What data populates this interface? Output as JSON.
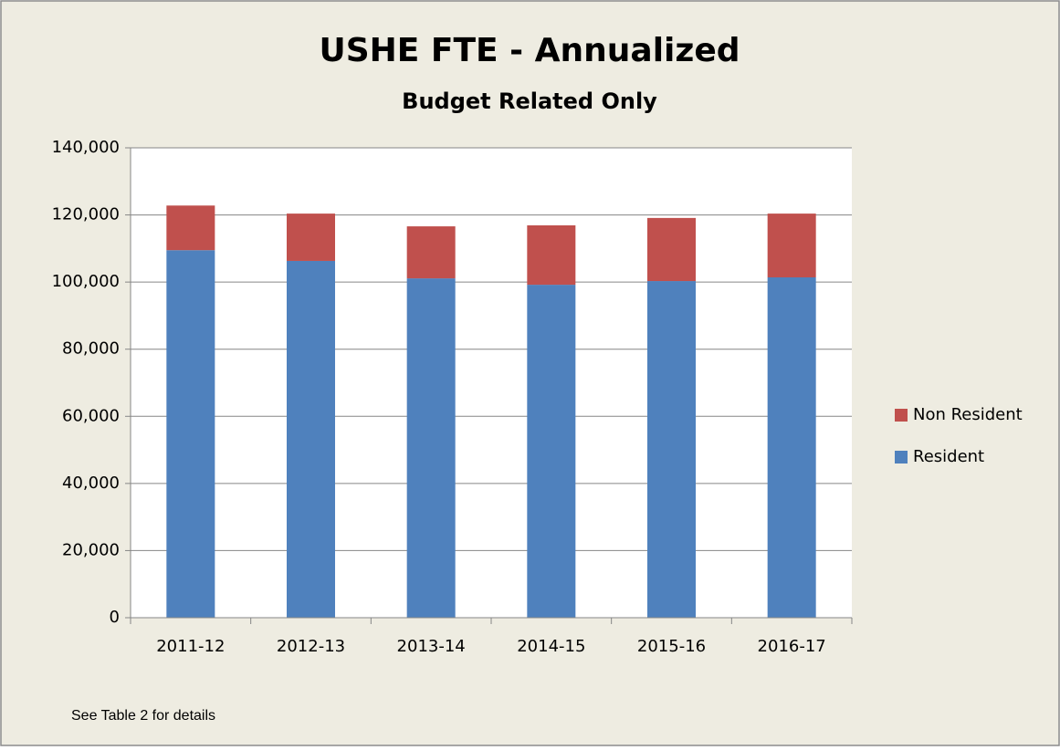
{
  "chart_data": {
    "type": "stacked-bar",
    "title": "USHE FTE - Annualized",
    "subtitle": "Budget Related Only",
    "categories": [
      "2011-12",
      "2012-13",
      "2013-14",
      "2014-15",
      "2015-16",
      "2016-17"
    ],
    "series": [
      {
        "name": "Resident",
        "color": "#4f81bd",
        "values": [
          109500,
          106300,
          101100,
          99200,
          100300,
          101400
        ]
      },
      {
        "name": "Non Resident",
        "color": "#c0504d",
        "values": [
          13300,
          14100,
          15500,
          17700,
          18800,
          19000
        ]
      }
    ],
    "ylim": [
      0,
      140000
    ],
    "yticks": [
      0,
      {
        "value": 20000,
        "label": "20,000"
      },
      {
        "value": 40000,
        "label": "40,000"
      },
      {
        "value": 60000,
        "label": "60,000"
      },
      {
        "value": 80000,
        "label": "80,000"
      },
      {
        "value": 100000,
        "label": "100,000"
      },
      {
        "value": 120000,
        "label": "120,000"
      },
      {
        "value": 140000,
        "label": "140,000"
      }
    ],
    "grid": true,
    "legend": "right",
    "note": "See Table 2 for details"
  }
}
